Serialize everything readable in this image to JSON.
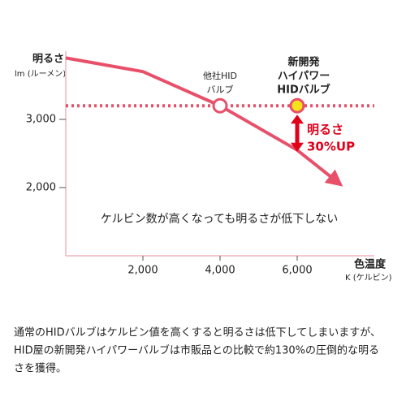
{
  "chart_data": {
    "type": "line",
    "ylabel": "明るさ",
    "ylabel_unit": "lm (ルーメン)",
    "xlabel": "色温度",
    "xlabel_unit": "K (ケルビン)",
    "x": [
      0,
      2000,
      4000,
      6000,
      7000
    ],
    "values": [
      3900,
      3700,
      3200,
      2550,
      2100
    ],
    "color": "#e8506a",
    "xlim": [
      0,
      8000
    ],
    "ylim": [
      1000,
      4000
    ],
    "xticks": [
      {
        "value": 2000,
        "label": "2,000"
      },
      {
        "value": 4000,
        "label": "4,000"
      },
      {
        "value": 6000,
        "label": "6,000"
      }
    ],
    "yticks": [
      {
        "value": 2000,
        "label": "2,000"
      },
      {
        "value": 3000,
        "label": "3,000"
      }
    ],
    "reference": {
      "value": 3200,
      "color": "#e8506a"
    },
    "points": [
      {
        "x": 4000,
        "y": 3200,
        "fill": "#ffffff",
        "lines": [
          "他社HID",
          "バルブ"
        ]
      },
      {
        "x": 6000,
        "y": 3200,
        "fill": "#f5e31a",
        "lines": [
          "新開発",
          "ハイパワー",
          "HIDバルブ"
        ]
      }
    ],
    "highlight": [
      "明るさ",
      "30%UP"
    ],
    "annotation": "ケルビン数が高くなっても明るさが低下しない"
  },
  "caption": [
    "通常のHIDバルブはケルビン値を高くすると明るさは低下してしまいますが、",
    "HID屋の新開発ハイパワーバルブは市販品との比較で約130%の圧倒的な明る",
    "さを獲得。"
  ]
}
